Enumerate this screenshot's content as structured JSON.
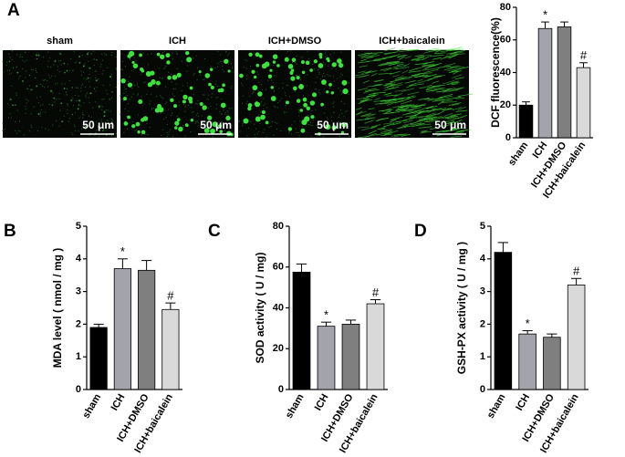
{
  "chart_data": [
    {
      "type": "bar",
      "panel": "A",
      "ylabel": "DCF fluorescence(%)",
      "categories": [
        "sham",
        "ICH",
        "ICH+DMSO",
        "ICH+baicalein"
      ],
      "values": [
        20,
        67,
        68,
        43
      ],
      "errors": [
        2,
        4,
        3,
        3
      ],
      "annotations": [
        null,
        "*",
        null,
        "#"
      ],
      "colors": [
        "#000000",
        "#a3a3ab",
        "#7f7f7f",
        "#d9d9d9"
      ],
      "ylim": [
        0,
        80
      ],
      "yticks": [
        0,
        20,
        40,
        60,
        80
      ],
      "image_labels": [
        "sham",
        "ICH",
        "ICH+DMSO",
        "ICH+baicalein"
      ],
      "scale_bar": "50 μm"
    },
    {
      "type": "bar",
      "panel": "B",
      "ylabel": "MDA level ( nmol / mg )",
      "categories": [
        "sham",
        "ICH",
        "ICH+DMSO",
        "ICH+baicalein"
      ],
      "values": [
        1.9,
        3.7,
        3.65,
        2.45
      ],
      "errors": [
        0.1,
        0.3,
        0.3,
        0.2
      ],
      "annotations": [
        null,
        "*",
        null,
        "#"
      ],
      "colors": [
        "#000000",
        "#a3a3ab",
        "#7f7f7f",
        "#d9d9d9"
      ],
      "ylim": [
        0,
        5
      ],
      "yticks": [
        0,
        1,
        2,
        3,
        4,
        5
      ]
    },
    {
      "type": "bar",
      "panel": "C",
      "ylabel": "SOD activity ( U / mg)",
      "categories": [
        "sham",
        "ICH",
        "ICH+DMSO",
        "ICH+baicalein"
      ],
      "values": [
        57.5,
        31,
        32,
        42
      ],
      "errors": [
        4,
        2,
        2,
        2
      ],
      "annotations": [
        null,
        "*",
        null,
        "#"
      ],
      "colors": [
        "#000000",
        "#a3a3ab",
        "#7f7f7f",
        "#d9d9d9"
      ],
      "ylim": [
        0,
        80
      ],
      "yticks": [
        0,
        20,
        40,
        60,
        80
      ]
    },
    {
      "type": "bar",
      "panel": "D",
      "ylabel": "GSH-PX activity ( U / mg )",
      "categories": [
        "sham",
        "ICH",
        "ICH+DMSO",
        "ICH+baicalein"
      ],
      "values": [
        4.2,
        1.7,
        1.6,
        3.2
      ],
      "errors": [
        0.3,
        0.1,
        0.1,
        0.2
      ],
      "annotations": [
        null,
        "*",
        null,
        "#"
      ],
      "colors": [
        "#000000",
        "#a3a3ab",
        "#7f7f7f",
        "#d9d9d9"
      ],
      "ylim": [
        0,
        5
      ],
      "yticks": [
        0,
        1,
        2,
        3,
        4,
        5
      ]
    }
  ]
}
